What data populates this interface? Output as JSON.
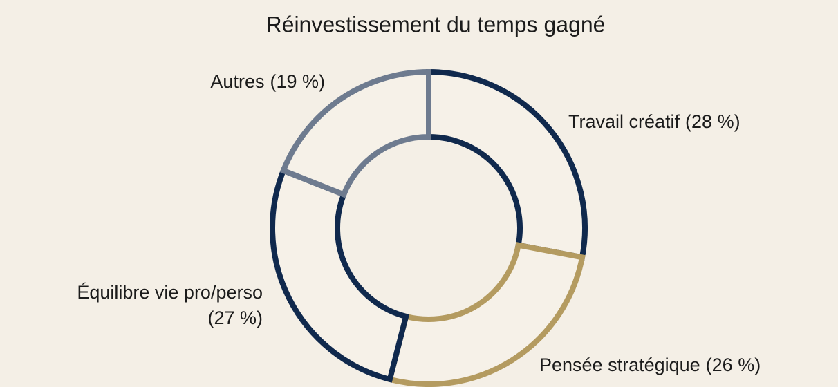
{
  "chart_data": {
    "type": "donut",
    "title": "Réinvestissement du temps gagné",
    "categories": [
      "Travail créatif",
      "Pensée stratégique",
      "Équilibre vie pro/perso",
      "Autres"
    ],
    "values": [
      28,
      26,
      27,
      19
    ],
    "value_labels": [
      "(28 %)",
      "(26 %)",
      "(27 %)",
      "(19 %)"
    ],
    "colors": [
      "#10294d",
      "#b49b60",
      "#10294d",
      "#6e7b8f"
    ]
  }
}
